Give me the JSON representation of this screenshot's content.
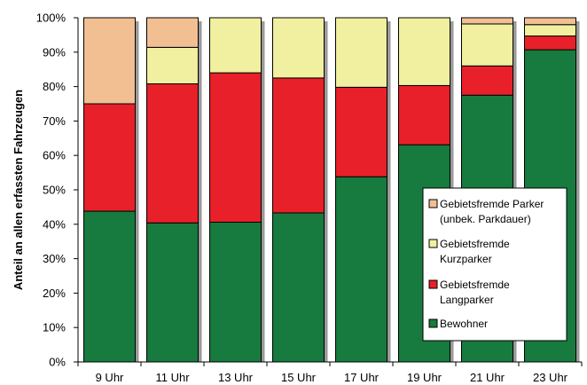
{
  "chart_data": {
    "type": "bar",
    "stacked": true,
    "percent": true,
    "categories": [
      "9 Uhr",
      "11 Uhr",
      "13 Uhr",
      "15 Uhr",
      "17 Uhr",
      "19 Uhr",
      "21 Uhr",
      "23 Uhr"
    ],
    "series": [
      {
        "name": "Bewohner",
        "color": "#177a3e",
        "values": [
          43.8,
          40.4,
          40.6,
          43.3,
          53.8,
          63.1,
          77.5,
          90.7
        ]
      },
      {
        "name": "Gebietsfremde Langparker",
        "color": "#e8202a",
        "values": [
          31.2,
          40.4,
          43.4,
          39.2,
          26.0,
          17.2,
          8.5,
          4.0
        ]
      },
      {
        "name": "Gebietsfremde Kurzparker",
        "color": "#f0f0a0",
        "values": [
          0.0,
          10.6,
          16.0,
          17.5,
          20.2,
          19.7,
          12.2,
          3.3
        ]
      },
      {
        "name": "Gebietsfremde Parker (unbek. Parkdauer)",
        "color": "#f2bf92",
        "values": [
          25.0,
          8.6,
          0.0,
          0.0,
          0.0,
          0.0,
          1.8,
          2.0
        ]
      }
    ],
    "xlabel": "",
    "ylabel": "Anteil an allen erfassten Fahrzeugen",
    "ylim": [
      0,
      100
    ],
    "yticks": [
      "0%",
      "10%",
      "20%",
      "30%",
      "40%",
      "50%",
      "60%",
      "70%",
      "80%",
      "90%",
      "100%"
    ],
    "grid": false,
    "legend_position": "bottom-right",
    "legend_order": [
      3,
      2,
      1,
      0
    ],
    "legend_labels": [
      [
        "Bewohner"
      ],
      [
        "Gebietsfremde",
        "Langparker"
      ],
      [
        "Gebietsfremde",
        "Kurzparker"
      ],
      [
        "Gebietsfremde Parker",
        "(unbek. Parkdauer)"
      ]
    ]
  }
}
